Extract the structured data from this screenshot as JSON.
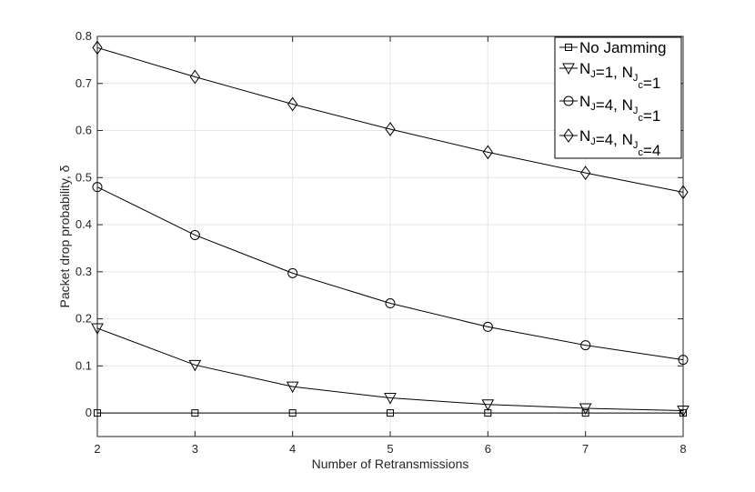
{
  "chart_data": {
    "type": "line",
    "xlabel": "Number of Retransmissions",
    "ylabel": "Packet drop probability, δ",
    "xlim": [
      2,
      8
    ],
    "ylim": [
      -0.05,
      0.8
    ],
    "xticks": [
      2,
      3,
      4,
      5,
      6,
      7,
      8
    ],
    "yticks": [
      0,
      0.1,
      0.2,
      0.3,
      0.4,
      0.5,
      0.6,
      0.7,
      0.8
    ],
    "xtick_labels": [
      "2",
      "3",
      "4",
      "5",
      "6",
      "7",
      "8"
    ],
    "ytick_labels": [
      "0",
      "0.1",
      "0.2",
      "0.3",
      "0.4",
      "0.5",
      "0.6",
      "0.7",
      "0.8"
    ],
    "grid": true,
    "legend_position": "top-right",
    "x": [
      2,
      3,
      4,
      5,
      6,
      7,
      8
    ],
    "series": [
      {
        "name": "No Jamming",
        "legend": {
          "main": "No Jamming",
          "parts": []
        },
        "marker": "square",
        "values": [
          0,
          0,
          0,
          0,
          0,
          0,
          0
        ]
      },
      {
        "name": "N_J=1, N_J_c=1",
        "legend": {
          "main": "",
          "parts": [
            {
              "t": "N",
              "s": "J",
              "ss": ""
            },
            {
              "t": "=1, N",
              "s": "J",
              "ss": "c"
            },
            {
              "t": "=1",
              "s": "",
              "ss": ""
            }
          ]
        },
        "marker": "triangle-down",
        "values": [
          0.18,
          0.102,
          0.056,
          0.032,
          0.018,
          0.01,
          0.005
        ]
      },
      {
        "name": "N_J=4, N_J_c=1",
        "legend": {
          "main": "",
          "parts": [
            {
              "t": "N",
              "s": "J",
              "ss": ""
            },
            {
              "t": "=4, N",
              "s": "J",
              "ss": "c"
            },
            {
              "t": "=1",
              "s": "",
              "ss": ""
            }
          ]
        },
        "marker": "circle",
        "values": [
          0.48,
          0.378,
          0.297,
          0.233,
          0.183,
          0.144,
          0.113
        ]
      },
      {
        "name": "N_J=4, N_J_c=4",
        "legend": {
          "main": "",
          "parts": [
            {
              "t": "N",
              "s": "J",
              "ss": ""
            },
            {
              "t": "=4, N",
              "s": "J",
              "ss": "c"
            },
            {
              "t": "=4",
              "s": "",
              "ss": ""
            }
          ]
        },
        "marker": "diamond",
        "values": [
          0.776,
          0.714,
          0.656,
          0.603,
          0.554,
          0.51,
          0.469
        ]
      }
    ]
  }
}
